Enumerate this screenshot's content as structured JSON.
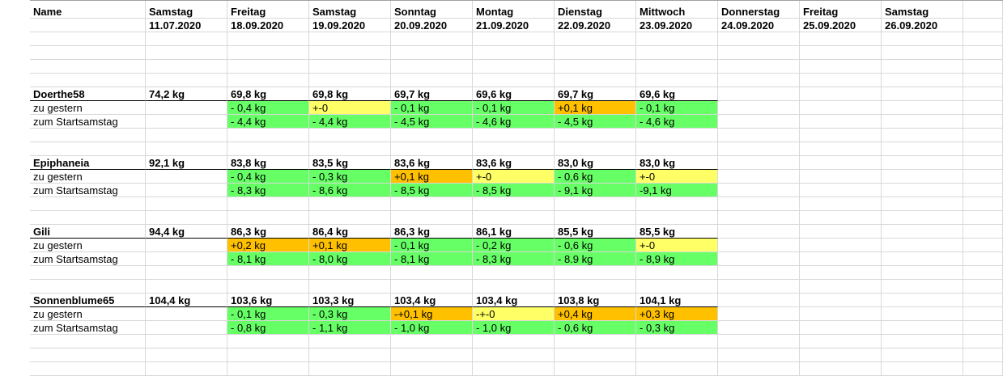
{
  "header": {
    "name_label": "Name",
    "days": [
      "Samstag",
      "Freitag",
      "Samstag",
      "Sonntag",
      "Montag",
      "Dienstag",
      "Mittwoch",
      "Donnerstag",
      "Freitag",
      "Samstag"
    ],
    "dates": [
      "11.07.2020",
      "18.09.2020",
      "19.09.2020",
      "20.09.2020",
      "21.09.2020",
      "22.09.2020",
      "23.09.2020",
      "24.09.2020",
      "25.09.2020",
      "26.09.2020"
    ]
  },
  "row_labels": {
    "vs_yesterday": "zu gestern",
    "vs_start": "zum Startsamstag"
  },
  "colors": {
    "decrease": "#66ff66",
    "no_change": "#ffff66",
    "increase": "#ffc000"
  },
  "people": [
    {
      "name": "Doerthe58",
      "start": "74,2 kg",
      "weights": [
        "69,8 kg",
        "69,8 kg",
        "69,7 kg",
        "69,6 kg",
        "69,7 kg",
        "69,6 kg"
      ],
      "vs_yesterday": [
        {
          "v": "- 0,4 kg",
          "s": "green"
        },
        {
          "v": "+-0",
          "s": "yellow"
        },
        {
          "v": "- 0,1 kg",
          "s": "green"
        },
        {
          "v": "- 0,1 kg",
          "s": "green"
        },
        {
          "v": "+0,1 kg",
          "s": "orange"
        },
        {
          "v": "- 0,1 kg",
          "s": "green"
        }
      ],
      "vs_start": [
        {
          "v": "- 4,4 kg",
          "s": "green"
        },
        {
          "v": "- 4,4 kg",
          "s": "green"
        },
        {
          "v": "- 4,5 kg",
          "s": "green"
        },
        {
          "v": "- 4,6 kg",
          "s": "green"
        },
        {
          "v": "- 4,5 kg",
          "s": "green"
        },
        {
          "v": "- 4,6 kg",
          "s": "green"
        }
      ]
    },
    {
      "name": "Epiphaneia",
      "start": "92,1 kg",
      "weights": [
        "83,8 kg",
        "83,5 kg",
        "83,6 kg",
        "83,6 kg",
        "83,0 kg",
        "83,0 kg"
      ],
      "vs_yesterday": [
        {
          "v": "- 0,4 kg",
          "s": "green"
        },
        {
          "v": "- 0,3 kg",
          "s": "green"
        },
        {
          "v": "+0,1 kg",
          "s": "orange"
        },
        {
          "v": "+-0",
          "s": "yellow"
        },
        {
          "v": "- 0,6 kg",
          "s": "green"
        },
        {
          "v": "+-0",
          "s": "yellow"
        }
      ],
      "vs_start": [
        {
          "v": "- 8,3 kg",
          "s": "green"
        },
        {
          "v": "- 8,6 kg",
          "s": "green"
        },
        {
          "v": "- 8,5 kg",
          "s": "green"
        },
        {
          "v": "- 8,5 kg",
          "s": "green"
        },
        {
          "v": "- 9,1 kg",
          "s": "green"
        },
        {
          "v": "-9,1 kg",
          "s": "green"
        }
      ]
    },
    {
      "name": "Gili",
      "start": "94,4 kg",
      "weights": [
        "86,3 kg",
        "86,4 kg",
        "86,3 kg",
        "86,1 kg",
        "85,5 kg",
        "85,5 kg"
      ],
      "vs_yesterday": [
        {
          "v": "+0,2 kg",
          "s": "orange"
        },
        {
          "v": "+0,1 kg",
          "s": "orange"
        },
        {
          "v": "- 0,1 kg",
          "s": "green"
        },
        {
          "v": "- 0,2 kg",
          "s": "green"
        },
        {
          "v": "- 0,6 kg",
          "s": "green"
        },
        {
          "v": "+-0",
          "s": "yellow"
        }
      ],
      "vs_start": [
        {
          "v": "- 8,1 kg",
          "s": "green"
        },
        {
          "v": "- 8,0 kg",
          "s": "green"
        },
        {
          "v": "- 8,1 kg",
          "s": "green"
        },
        {
          "v": "- 8,3 kg",
          "s": "green"
        },
        {
          "v": "- 8.9 kg",
          "s": "green"
        },
        {
          "v": "- 8,9 kg",
          "s": "green"
        }
      ]
    },
    {
      "name": "Sonnenblume65",
      "start": "104,4 kg",
      "weights": [
        "103,6 kg",
        "103,3 kg",
        "103,4 kg",
        "103,4 kg",
        "103,8 kg",
        "104,1 kg"
      ],
      "vs_yesterday": [
        {
          "v": "- 0,1 kg",
          "s": "green"
        },
        {
          "v": "- 0,3 kg",
          "s": "green"
        },
        {
          "v": "-+0,1 kg",
          "s": "orange"
        },
        {
          "v": "-+-0",
          "s": "yellow"
        },
        {
          "v": "+0,4 kg",
          "s": "orange"
        },
        {
          "v": "+0,3 kg",
          "s": "orange"
        }
      ],
      "vs_start": [
        {
          "v": "- 0,8 kg",
          "s": "green"
        },
        {
          "v": "- 1,1 kg",
          "s": "green"
        },
        {
          "v": "- 1,0 kg",
          "s": "green"
        },
        {
          "v": "- 1,0 kg",
          "s": "green"
        },
        {
          "v": "- 0,6 kg",
          "s": "green"
        },
        {
          "v": "- 0,3 kg",
          "s": "green"
        }
      ]
    }
  ]
}
